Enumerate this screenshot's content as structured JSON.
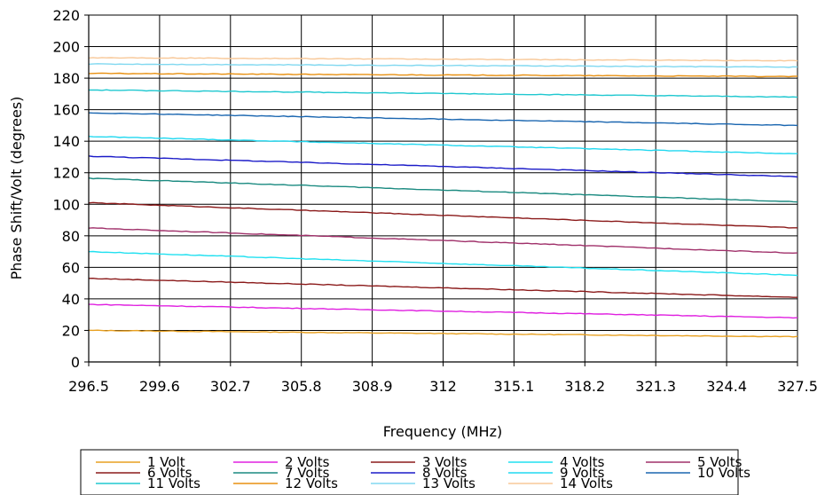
{
  "chart_data": {
    "type": "line",
    "title": "",
    "xlabel": "Frequency (MHz)",
    "ylabel": "Phase Shift/Volt (degrees)",
    "x_tick_labels": [
      "296.5",
      "299.6",
      "302.7",
      "305.8",
      "308.9",
      "312",
      "315.1",
      "318.2",
      "321.3",
      "324.4",
      "327.5"
    ],
    "xlim": [
      296.5,
      327.5
    ],
    "ylim": [
      0,
      220
    ],
    "y_ticks": [
      0,
      20,
      40,
      60,
      80,
      100,
      120,
      140,
      160,
      180,
      200,
      220
    ],
    "y_tick_labels": [
      "0",
      "20",
      "40",
      "60",
      "80",
      "100",
      "120",
      "140",
      "160",
      "180",
      "200",
      "220"
    ],
    "grid": true,
    "legend_position": "bottom",
    "series": [
      {
        "name": "1 Volt",
        "color": "#E8A020",
        "x": [
          296.5,
          327.5
        ],
        "y": [
          20,
          16
        ]
      },
      {
        "name": "2 Volts",
        "color": "#E020E0",
        "x": [
          296.5,
          327.5
        ],
        "y": [
          36.5,
          28
        ]
      },
      {
        "name": "3 Volts",
        "color": "#8B1A1A",
        "x": [
          296.5,
          327.5
        ],
        "y": [
          53,
          41
        ]
      },
      {
        "name": "4 Volts",
        "color": "#20E0F0",
        "x": [
          296.5,
          327.5
        ],
        "y": [
          70,
          55
        ]
      },
      {
        "name": "5 Volts",
        "color": "#A0306A",
        "x": [
          296.5,
          327.5
        ],
        "y": [
          85,
          69
        ]
      },
      {
        "name": "6 Volts",
        "color": "#8B1A1A",
        "x": [
          296.5,
          327.5
        ],
        "y": [
          101,
          85
        ]
      },
      {
        "name": "7 Volts",
        "color": "#1A8A80",
        "x": [
          296.5,
          327.5
        ],
        "y": [
          116.5,
          101.5
        ]
      },
      {
        "name": "8 Volts",
        "color": "#1A1AC8",
        "x": [
          296.5,
          327.5
        ],
        "y": [
          130.5,
          117.5
        ]
      },
      {
        "name": "9 Volts",
        "color": "#20D8F0",
        "x": [
          296.5,
          327.5
        ],
        "y": [
          143,
          132
        ]
      },
      {
        "name": "10 Volts",
        "color": "#1A66B0",
        "x": [
          296.5,
          327.5
        ],
        "y": [
          158,
          150
        ]
      },
      {
        "name": "11 Volts",
        "color": "#20C8D0",
        "x": [
          296.5,
          327.5
        ],
        "y": [
          172.5,
          168
        ]
      },
      {
        "name": "12 Volts",
        "color": "#E89010",
        "x": [
          296.5,
          327.5
        ],
        "y": [
          183,
          181
        ]
      },
      {
        "name": "13 Volts",
        "color": "#80D8F0",
        "x": [
          296.5,
          327.5
        ],
        "y": [
          189,
          187
        ]
      },
      {
        "name": "14 Volts",
        "color": "#F8C898",
        "x": [
          296.5,
          327.5
        ],
        "y": [
          193,
          191
        ]
      }
    ]
  }
}
